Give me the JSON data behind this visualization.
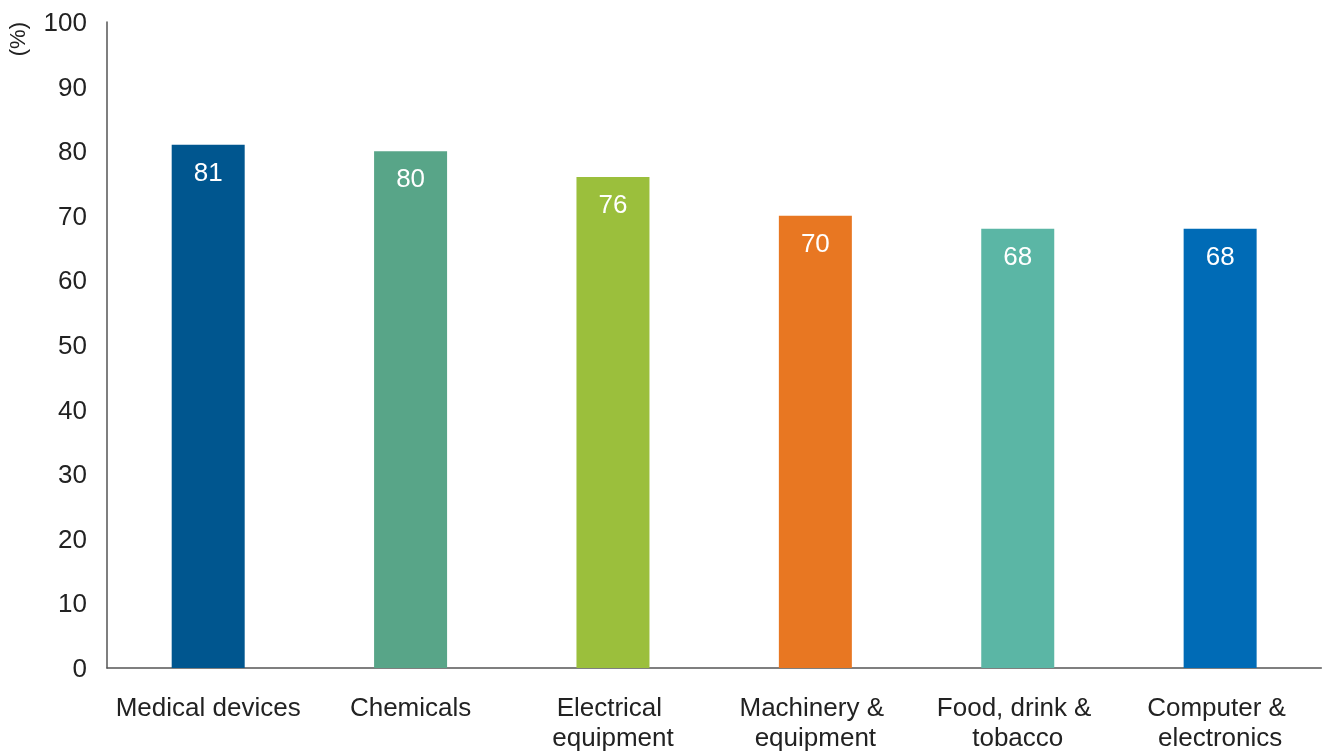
{
  "chart_data": {
    "type": "bar",
    "ylabel": "(%)",
    "categories": [
      "Medical devices",
      "Chemicals",
      "Electrical equipment",
      "Machinery & equipment",
      "Food, drink & tobacco",
      "Computer & electronics"
    ],
    "values": [
      81,
      80,
      76,
      70,
      68,
      68
    ],
    "colors": [
      "#00568f",
      "#58a588",
      "#9bbf3c",
      "#e87722",
      "#5bb6a5",
      "#006bb6"
    ],
    "ylim": [
      0,
      100
    ],
    "yticks": [
      0,
      10,
      20,
      30,
      40,
      50,
      60,
      70,
      80,
      90,
      100
    ],
    "grid": false,
    "data_labels": true
  }
}
